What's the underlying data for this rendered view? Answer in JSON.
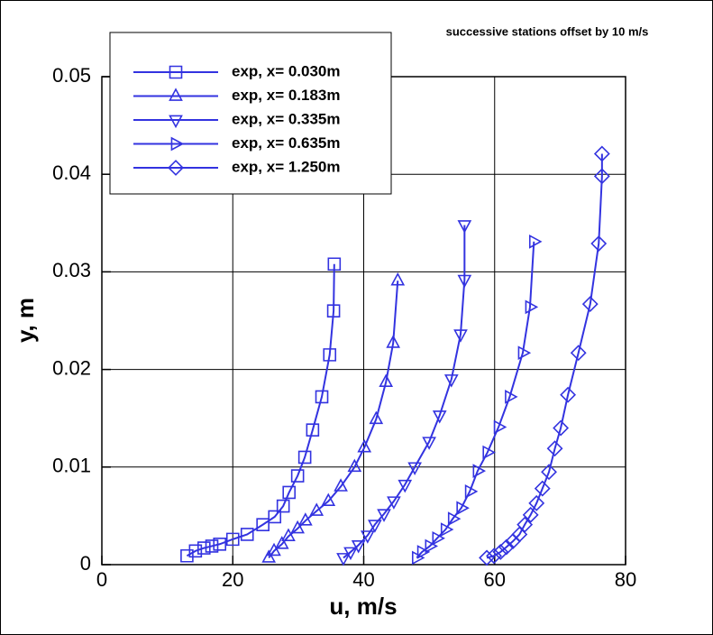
{
  "chart_data": {
    "type": "line",
    "annotation": "successive stations offset by 10 m/s",
    "x_label": "u, m/s",
    "y_label": "y, m",
    "xlim": [
      0,
      80
    ],
    "xticks": [
      0,
      20,
      40,
      60,
      80
    ],
    "ylim": [
      0,
      0.05
    ],
    "yticks": [
      0,
      0.01,
      0.02,
      0.03,
      0.04,
      0.05
    ],
    "grid": true,
    "legend": "upper left",
    "series": [
      {
        "name": "exp, x= 0.030m",
        "color": "#3333e0",
        "marker": "square",
        "x": [
          35.5,
          35.4,
          34.8,
          33.6,
          32.2,
          31.0,
          29.9,
          28.6,
          27.7,
          26.4,
          24.6,
          22.2,
          20.0,
          18.0,
          16.8,
          15.6,
          14.3,
          13.0
        ],
        "values": [
          0.0308,
          0.026,
          0.0215,
          0.0172,
          0.0138,
          0.011,
          0.0091,
          0.0074,
          0.006,
          0.0049,
          0.0041,
          0.0031,
          0.0026,
          0.0021,
          0.0019,
          0.0017,
          0.0014,
          0.0009
        ]
      },
      {
        "name": "exp, x= 0.183m",
        "color": "#3333e0",
        "marker": "triangle-up",
        "x": [
          45.2,
          44.5,
          43.4,
          41.9,
          40.1,
          38.6,
          36.5,
          34.6,
          32.8,
          31.1,
          29.9,
          28.5,
          27.5,
          26.3,
          25.5
        ],
        "values": [
          0.0291,
          0.0227,
          0.0187,
          0.0149,
          0.012,
          0.01,
          0.008,
          0.0065,
          0.0055,
          0.0045,
          0.0037,
          0.0029,
          0.0021,
          0.0014,
          0.0007
        ]
      },
      {
        "name": "exp, x= 0.335m",
        "color": "#3333e0",
        "marker": "triangle-down",
        "x": [
          55.4,
          55.4,
          54.8,
          53.4,
          51.6,
          50.0,
          47.8,
          46.3,
          44.6,
          43.1,
          41.7,
          40.6,
          39.2,
          38.0,
          36.9
        ],
        "values": [
          0.0348,
          0.0292,
          0.0236,
          0.019,
          0.0153,
          0.0126,
          0.01,
          0.0082,
          0.0065,
          0.0052,
          0.0041,
          0.003,
          0.002,
          0.0013,
          0.0007
        ]
      },
      {
        "name": "exp, x= 0.635m",
        "color": "#3333e0",
        "marker": "triangle-right",
        "x": [
          66.0,
          65.4,
          64.3,
          62.3,
          60.6,
          58.9,
          57.4,
          56.2,
          54.9,
          53.6,
          52.5,
          51.2,
          50.1,
          48.9,
          48.1
        ],
        "values": [
          0.0331,
          0.0264,
          0.0217,
          0.0172,
          0.0141,
          0.0115,
          0.0096,
          0.0075,
          0.0058,
          0.0047,
          0.0036,
          0.0027,
          0.0019,
          0.0013,
          0.0007
        ]
      },
      {
        "name": "exp, x= 1.250m",
        "color": "#3333e0",
        "marker": "diamond",
        "x": [
          76.4,
          76.4,
          75.9,
          74.6,
          72.8,
          71.2,
          70.1,
          69.2,
          68.3,
          67.3,
          66.4,
          65.5,
          64.6,
          63.8,
          62.8,
          61.8,
          60.9,
          59.9,
          58.8
        ],
        "values": [
          0.0421,
          0.0398,
          0.0329,
          0.0267,
          0.0217,
          0.0174,
          0.014,
          0.0119,
          0.0095,
          0.0078,
          0.0063,
          0.0051,
          0.0041,
          0.0031,
          0.0024,
          0.0018,
          0.0013,
          0.0009,
          0.0007
        ]
      }
    ]
  }
}
